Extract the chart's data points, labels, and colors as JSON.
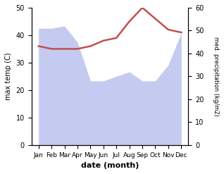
{
  "months": [
    "Jan",
    "Feb",
    "Mar",
    "Apr",
    "May",
    "Jun",
    "Jul",
    "Aug",
    "Sep",
    "Oct",
    "Nov",
    "Dec"
  ],
  "precipitation": [
    51,
    51,
    52,
    45,
    28,
    28,
    30,
    32,
    28,
    28,
    35,
    49
  ],
  "temperature": [
    36,
    35,
    35,
    35,
    36,
    38,
    39,
    45,
    50,
    46,
    42,
    41
  ],
  "temp_color": "#c0504d",
  "precip_fill_color": "#c5cbf0",
  "ylabel_left": "max temp (C)",
  "ylabel_right": "med. precipitation (kg/m2)",
  "xlabel": "date (month)",
  "ylim_left": [
    0,
    50
  ],
  "ylim_right": [
    0,
    60
  ],
  "yticks_left": [
    0,
    10,
    20,
    30,
    40,
    50
  ],
  "yticks_right": [
    0,
    10,
    20,
    30,
    40,
    50,
    60
  ]
}
